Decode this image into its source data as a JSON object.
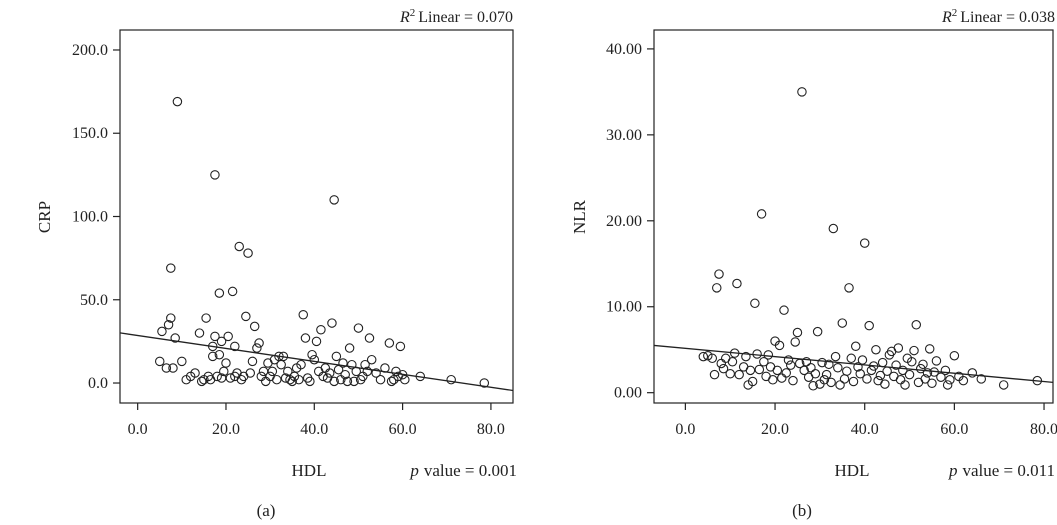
{
  "chart_data": [
    {
      "type": "scatter",
      "panel_label": "(a)",
      "xlabel": "HDL",
      "ylabel": "CRP",
      "r2_label": "Linear = 0.070",
      "pvalue_label": "value = 0.001",
      "x_ticks": [
        "0.0",
        "20.0",
        "40.0",
        "60.0",
        "80.0"
      ],
      "y_ticks": [
        "0.0",
        "50.0",
        "100.0",
        "150.0",
        "200.0"
      ],
      "xlim": [
        -4,
        85
      ],
      "ylim": [
        -12,
        212
      ],
      "fit_line": {
        "x": [
          -4,
          85
        ],
        "y": [
          30.1,
          -4.5
        ]
      },
      "points": [
        [
          5,
          13
        ],
        [
          5.5,
          31
        ],
        [
          6.5,
          9
        ],
        [
          7,
          35
        ],
        [
          7.5,
          39
        ],
        [
          7.5,
          69
        ],
        [
          8,
          9
        ],
        [
          8.5,
          27
        ],
        [
          9,
          169
        ],
        [
          10,
          13
        ],
        [
          11,
          2
        ],
        [
          12,
          4
        ],
        [
          13,
          6
        ],
        [
          14,
          30
        ],
        [
          14.5,
          1
        ],
        [
          15,
          2
        ],
        [
          15.5,
          39
        ],
        [
          16,
          4
        ],
        [
          16.5,
          2
        ],
        [
          17,
          22
        ],
        [
          17,
          16
        ],
        [
          17.5,
          125
        ],
        [
          17.5,
          28
        ],
        [
          18,
          4
        ],
        [
          18.5,
          54
        ],
        [
          18.5,
          17
        ],
        [
          19,
          25
        ],
        [
          19,
          3
        ],
        [
          19.5,
          7
        ],
        [
          20,
          12
        ],
        [
          20.5,
          28
        ],
        [
          21,
          3
        ],
        [
          21.5,
          55
        ],
        [
          22,
          4
        ],
        [
          22,
          22
        ],
        [
          22.5,
          6
        ],
        [
          23,
          82
        ],
        [
          23.5,
          2
        ],
        [
          24,
          4
        ],
        [
          24.5,
          40
        ],
        [
          25,
          78
        ],
        [
          25.5,
          6
        ],
        [
          26,
          13
        ],
        [
          26.5,
          34
        ],
        [
          27,
          21
        ],
        [
          27.5,
          24
        ],
        [
          28,
          4
        ],
        [
          28.5,
          7
        ],
        [
          29,
          1
        ],
        [
          29.5,
          12
        ],
        [
          30,
          4
        ],
        [
          30.5,
          7
        ],
        [
          31,
          14
        ],
        [
          31.5,
          2
        ],
        [
          32,
          16
        ],
        [
          32.5,
          11
        ],
        [
          33,
          16
        ],
        [
          33.5,
          3
        ],
        [
          34,
          7
        ],
        [
          34.5,
          2
        ],
        [
          35,
          1
        ],
        [
          35.5,
          4
        ],
        [
          36,
          9
        ],
        [
          36.5,
          2
        ],
        [
          37,
          11
        ],
        [
          37.5,
          41
        ],
        [
          38,
          27
        ],
        [
          38.5,
          3
        ],
        [
          39,
          1
        ],
        [
          39.5,
          17
        ],
        [
          40,
          14
        ],
        [
          40.5,
          25
        ],
        [
          41,
          7
        ],
        [
          41.5,
          32
        ],
        [
          42,
          4
        ],
        [
          42.5,
          9
        ],
        [
          43,
          3
        ],
        [
          43.5,
          6
        ],
        [
          44,
          36
        ],
        [
          44.5,
          110
        ],
        [
          44.5,
          1
        ],
        [
          45,
          16
        ],
        [
          45.5,
          8
        ],
        [
          46,
          2
        ],
        [
          46.5,
          12
        ],
        [
          47,
          5
        ],
        [
          47.5,
          1
        ],
        [
          48,
          21
        ],
        [
          48.5,
          11
        ],
        [
          49,
          1
        ],
        [
          49.5,
          7
        ],
        [
          50,
          33
        ],
        [
          50.5,
          2
        ],
        [
          51,
          4
        ],
        [
          51.5,
          11
        ],
        [
          52,
          7
        ],
        [
          52.5,
          27
        ],
        [
          53,
          14
        ],
        [
          54,
          6
        ],
        [
          55,
          2
        ],
        [
          56,
          9
        ],
        [
          57,
          24
        ],
        [
          57.5,
          1
        ],
        [
          58,
          2
        ],
        [
          58.5,
          7
        ],
        [
          59,
          4
        ],
        [
          59.5,
          22
        ],
        [
          60,
          5
        ],
        [
          60.5,
          2
        ],
        [
          64,
          4
        ],
        [
          71,
          2
        ],
        [
          78.5,
          0
        ]
      ]
    },
    {
      "type": "scatter",
      "panel_label": "(b)",
      "xlabel": "HDL",
      "ylabel": "NLR",
      "r2_label": "Linear = 0.038",
      "pvalue_label": "value = 0.011",
      "x_ticks": [
        "0.0",
        "20.0",
        "40.0",
        "60.0",
        "80.0"
      ],
      "y_ticks": [
        "0.00",
        "10.00",
        "20.00",
        "30.00",
        "40.00"
      ],
      "xlim": [
        -7,
        82
      ],
      "ylim": [
        -1.2,
        42.2
      ],
      "fit_line": {
        "x": [
          -7,
          82
        ],
        "y": [
          5.5,
          1.2
        ]
      },
      "points": [
        [
          4,
          4.2
        ],
        [
          5,
          4.3
        ],
        [
          6,
          4.0
        ],
        [
          6.5,
          2.1
        ],
        [
          7,
          12.2
        ],
        [
          7.5,
          13.8
        ],
        [
          8,
          3.4
        ],
        [
          8.5,
          2.8
        ],
        [
          9,
          4.0
        ],
        [
          10,
          2.2
        ],
        [
          10.5,
          3.6
        ],
        [
          11,
          4.6
        ],
        [
          11.5,
          12.7
        ],
        [
          12,
          2.1
        ],
        [
          13,
          3.0
        ],
        [
          13.5,
          4.2
        ],
        [
          14,
          0.9
        ],
        [
          14.5,
          2.6
        ],
        [
          15,
          1.3
        ],
        [
          15.5,
          10.4
        ],
        [
          16,
          4.5
        ],
        [
          16.5,
          2.7
        ],
        [
          17,
          20.8
        ],
        [
          17.5,
          3.6
        ],
        [
          18,
          1.9
        ],
        [
          18.5,
          4.4
        ],
        [
          19,
          3.0
        ],
        [
          19.5,
          1.5
        ],
        [
          20,
          6.0
        ],
        [
          20.5,
          2.6
        ],
        [
          21,
          5.5
        ],
        [
          21.5,
          1.7
        ],
        [
          22,
          9.6
        ],
        [
          22.5,
          2.3
        ],
        [
          23,
          3.8
        ],
        [
          23.5,
          3.2
        ],
        [
          24,
          1.4
        ],
        [
          24.5,
          5.9
        ],
        [
          25,
          7.0
        ],
        [
          25.5,
          3.4
        ],
        [
          26,
          35.0
        ],
        [
          26.5,
          2.6
        ],
        [
          27,
          3.6
        ],
        [
          27.5,
          1.8
        ],
        [
          28,
          2.9
        ],
        [
          28.5,
          0.8
        ],
        [
          29,
          2.2
        ],
        [
          29.5,
          7.1
        ],
        [
          30,
          1.0
        ],
        [
          30.5,
          3.5
        ],
        [
          31,
          1.5
        ],
        [
          31.5,
          2.1
        ],
        [
          32,
          3.3
        ],
        [
          32.5,
          1.2
        ],
        [
          33,
          19.1
        ],
        [
          33.5,
          4.2
        ],
        [
          34,
          2.9
        ],
        [
          34.5,
          0.9
        ],
        [
          35,
          8.1
        ],
        [
          35.5,
          1.6
        ],
        [
          36,
          2.5
        ],
        [
          36.5,
          12.2
        ],
        [
          37,
          4.0
        ],
        [
          37.5,
          1.3
        ],
        [
          38,
          5.4
        ],
        [
          38.5,
          3.0
        ],
        [
          39,
          2.2
        ],
        [
          39.5,
          3.8
        ],
        [
          40,
          17.4
        ],
        [
          40.5,
          1.6
        ],
        [
          41,
          7.8
        ],
        [
          41.5,
          2.6
        ],
        [
          42,
          3.1
        ],
        [
          42.5,
          5.0
        ],
        [
          43,
          1.4
        ],
        [
          43.5,
          2.0
        ],
        [
          44,
          3.5
        ],
        [
          44.5,
          1.0
        ],
        [
          45,
          2.5
        ],
        [
          45.5,
          4.4
        ],
        [
          46,
          4.8
        ],
        [
          46.5,
          1.9
        ],
        [
          47,
          3.2
        ],
        [
          47.5,
          5.2
        ],
        [
          48,
          1.5
        ],
        [
          48.5,
          2.6
        ],
        [
          49,
          0.9
        ],
        [
          49.5,
          4.0
        ],
        [
          50,
          2.1
        ],
        [
          50.5,
          3.6
        ],
        [
          51,
          4.9
        ],
        [
          51.5,
          7.9
        ],
        [
          52,
          1.2
        ],
        [
          52.5,
          2.8
        ],
        [
          53,
          3.3
        ],
        [
          53.5,
          1.6
        ],
        [
          54,
          2.3
        ],
        [
          54.5,
          5.1
        ],
        [
          55,
          1.1
        ],
        [
          55.5,
          2.4
        ],
        [
          56,
          3.7
        ],
        [
          57,
          1.8
        ],
        [
          58,
          2.6
        ],
        [
          58.5,
          0.9
        ],
        [
          59,
          1.5
        ],
        [
          60,
          4.3
        ],
        [
          61,
          1.9
        ],
        [
          62,
          1.4
        ],
        [
          64,
          2.3
        ],
        [
          66,
          1.6
        ],
        [
          71,
          0.9
        ],
        [
          78.5,
          1.4
        ]
      ]
    }
  ]
}
